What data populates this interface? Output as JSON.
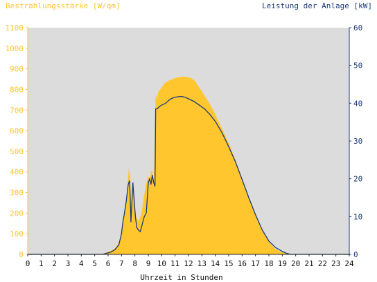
{
  "chart_data": {
    "type": "area",
    "ylabel_left": "Bestrahlungsstärke [W/qm]",
    "ylabel_right": "Leistung der Anlage [kW]",
    "xlabel": "Uhrzeit in Stunden",
    "xlim": [
      0,
      24
    ],
    "ylim_left": [
      0,
      1100
    ],
    "ylim_right": [
      0,
      60
    ],
    "x_ticks": [
      "0",
      "1",
      "2",
      "3",
      "4",
      "5",
      "6",
      "7",
      "8",
      "9",
      "10",
      "11",
      "12",
      "13",
      "14",
      "15",
      "16",
      "17",
      "18",
      "19",
      "20",
      "21",
      "22",
      "23",
      "24"
    ],
    "y_ticks_left": [
      "0",
      "100",
      "200",
      "300",
      "400",
      "500",
      "600",
      "700",
      "800",
      "900",
      "1000",
      "1100"
    ],
    "y_ticks_right": [
      "0",
      "10",
      "20",
      "30",
      "40",
      "50",
      "60"
    ],
    "grid": false,
    "plot_background": "#dcdcdc",
    "series": [
      {
        "name": "Bestrahlungsstärke",
        "axis": "left",
        "color": "#ffc62e",
        "style": "area",
        "x": [
          0,
          5.5,
          5.8,
          6.0,
          6.3,
          6.6,
          6.9,
          7.1,
          7.3,
          7.45,
          7.55,
          7.65,
          7.75,
          7.85,
          7.95,
          8.1,
          8.3,
          8.5,
          8.7,
          8.9,
          9.0,
          9.1,
          9.2,
          9.3,
          9.4,
          9.55,
          9.65,
          9.75,
          9.9,
          10.2,
          10.6,
          11.0,
          11.3,
          11.6,
          11.9,
          12.2,
          12.5,
          12.8,
          13.1,
          13.5,
          14.0,
          14.5,
          15.0,
          15.5,
          16.0,
          16.5,
          17.0,
          17.5,
          18.0,
          18.5,
          19.0,
          19.3,
          19.6,
          19.8,
          24
        ],
        "y": [
          0,
          0,
          8,
          12,
          20,
          35,
          75,
          170,
          240,
          330,
          420,
          370,
          200,
          350,
          250,
          180,
          160,
          205,
          290,
          360,
          380,
          360,
          400,
          410,
          330,
          780,
          750,
          790,
          800,
          830,
          845,
          855,
          860,
          862,
          860,
          855,
          840,
          810,
          780,
          740,
          680,
          610,
          540,
          460,
          370,
          280,
          190,
          120,
          60,
          25,
          10,
          3,
          0,
          0,
          0
        ]
      },
      {
        "name": "Leistung der Anlage",
        "axis": "right",
        "color": "#1b3a7a",
        "style": "line",
        "x": [
          0,
          5.6,
          5.9,
          6.2,
          6.5,
          6.8,
          7.0,
          7.1,
          7.2,
          7.35,
          7.5,
          7.6,
          7.65,
          7.7,
          7.75,
          7.85,
          7.95,
          8.05,
          8.15,
          8.25,
          8.4,
          8.55,
          8.7,
          8.85,
          9.0,
          9.1,
          9.2,
          9.3,
          9.4,
          9.5,
          9.55,
          9.65,
          9.8,
          10.0,
          10.3,
          10.6,
          10.9,
          11.2,
          11.5,
          11.8,
          12.1,
          12.4,
          12.8,
          13.2,
          13.6,
          14.0,
          14.5,
          15.0,
          15.5,
          16.0,
          16.5,
          17.0,
          17.5,
          18.0,
          18.5,
          19.0,
          19.3,
          19.6,
          24
        ],
        "y": [
          0,
          0,
          0.3,
          0.6,
          1.2,
          2.5,
          5.5,
          8.5,
          10.5,
          14,
          18.5,
          19.5,
          15,
          8.5,
          12,
          19,
          14,
          9.5,
          7,
          6.5,
          6,
          8,
          10,
          11,
          19,
          20,
          18.5,
          21,
          19,
          18,
          38.5,
          38.5,
          39,
          39.5,
          40,
          41,
          41.5,
          41.7,
          41.8,
          41.5,
          41,
          40.5,
          39.5,
          38.5,
          37,
          35.2,
          32.2,
          28.5,
          24.5,
          19.8,
          15,
          10.5,
          6.5,
          3.5,
          1.8,
          0.8,
          0.3,
          0,
          0
        ]
      }
    ]
  }
}
